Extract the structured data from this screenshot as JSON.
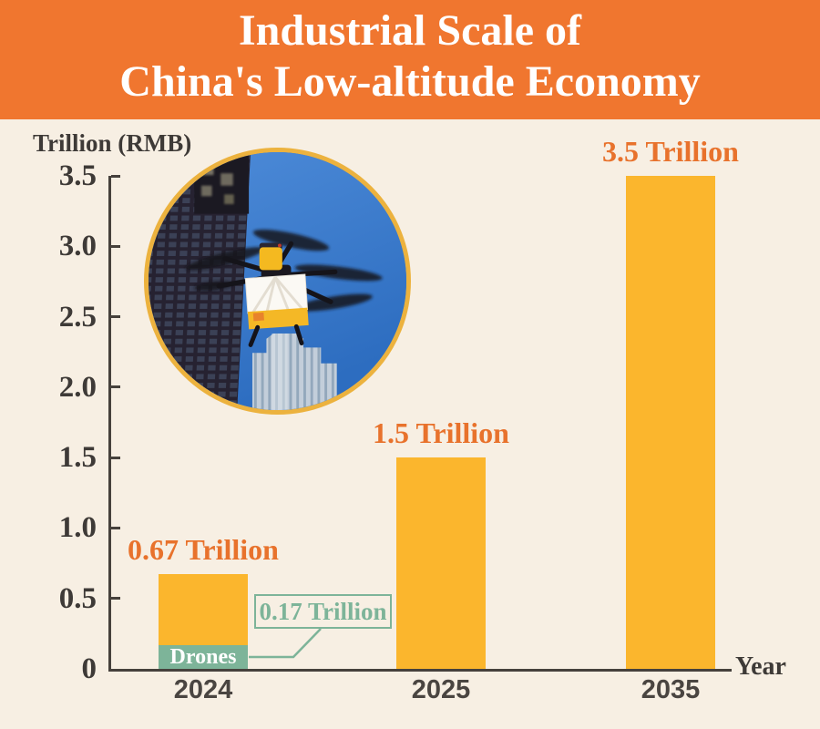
{
  "title": {
    "line1": "Industrial Scale of",
    "line2": "China's Low-altitude Economy"
  },
  "chart": {
    "ylabel": "Trillion (RMB)",
    "xlabel": "Year"
  },
  "photo": {
    "name": "drone-delivery-photo",
    "alt": "Delivery drone flying between high-rise buildings"
  },
  "chart_data": {
    "type": "bar",
    "title": "Industrial Scale of China's Low-altitude Economy",
    "categories": [
      "2024",
      "2025",
      "2035"
    ],
    "values": [
      0.67,
      1.5,
      3.5
    ],
    "bar_value_labels": [
      "0.67 Trillion",
      "1.5 Trillion",
      "3.5 Trillion"
    ],
    "sub_segment": {
      "category": "2024",
      "label": "Drones",
      "value": 0.17,
      "value_label": "0.17 Trillion"
    },
    "ylabel": "Trillion (RMB)",
    "xlabel": "Year",
    "ylim": [
      0,
      3.5
    ],
    "y_ticks": [
      0,
      0.5,
      1.0,
      1.5,
      2.0,
      2.5,
      3.0,
      3.5
    ],
    "y_tick_labels": [
      "0",
      "0.5",
      "1.0",
      "1.5",
      "2.0",
      "2.5",
      "3.0",
      "3.5"
    ],
    "grid": false,
    "legend": false
  },
  "colors": {
    "banner": "#F0762F",
    "background": "#F7EFE3",
    "bar": "#FBB62D",
    "drones_green": "#7DB499",
    "value_label_orange": "#E8722C",
    "axis_dark": "#46413C",
    "text_dark": "#3E3A37",
    "photo_ring": "#ECB23E"
  }
}
